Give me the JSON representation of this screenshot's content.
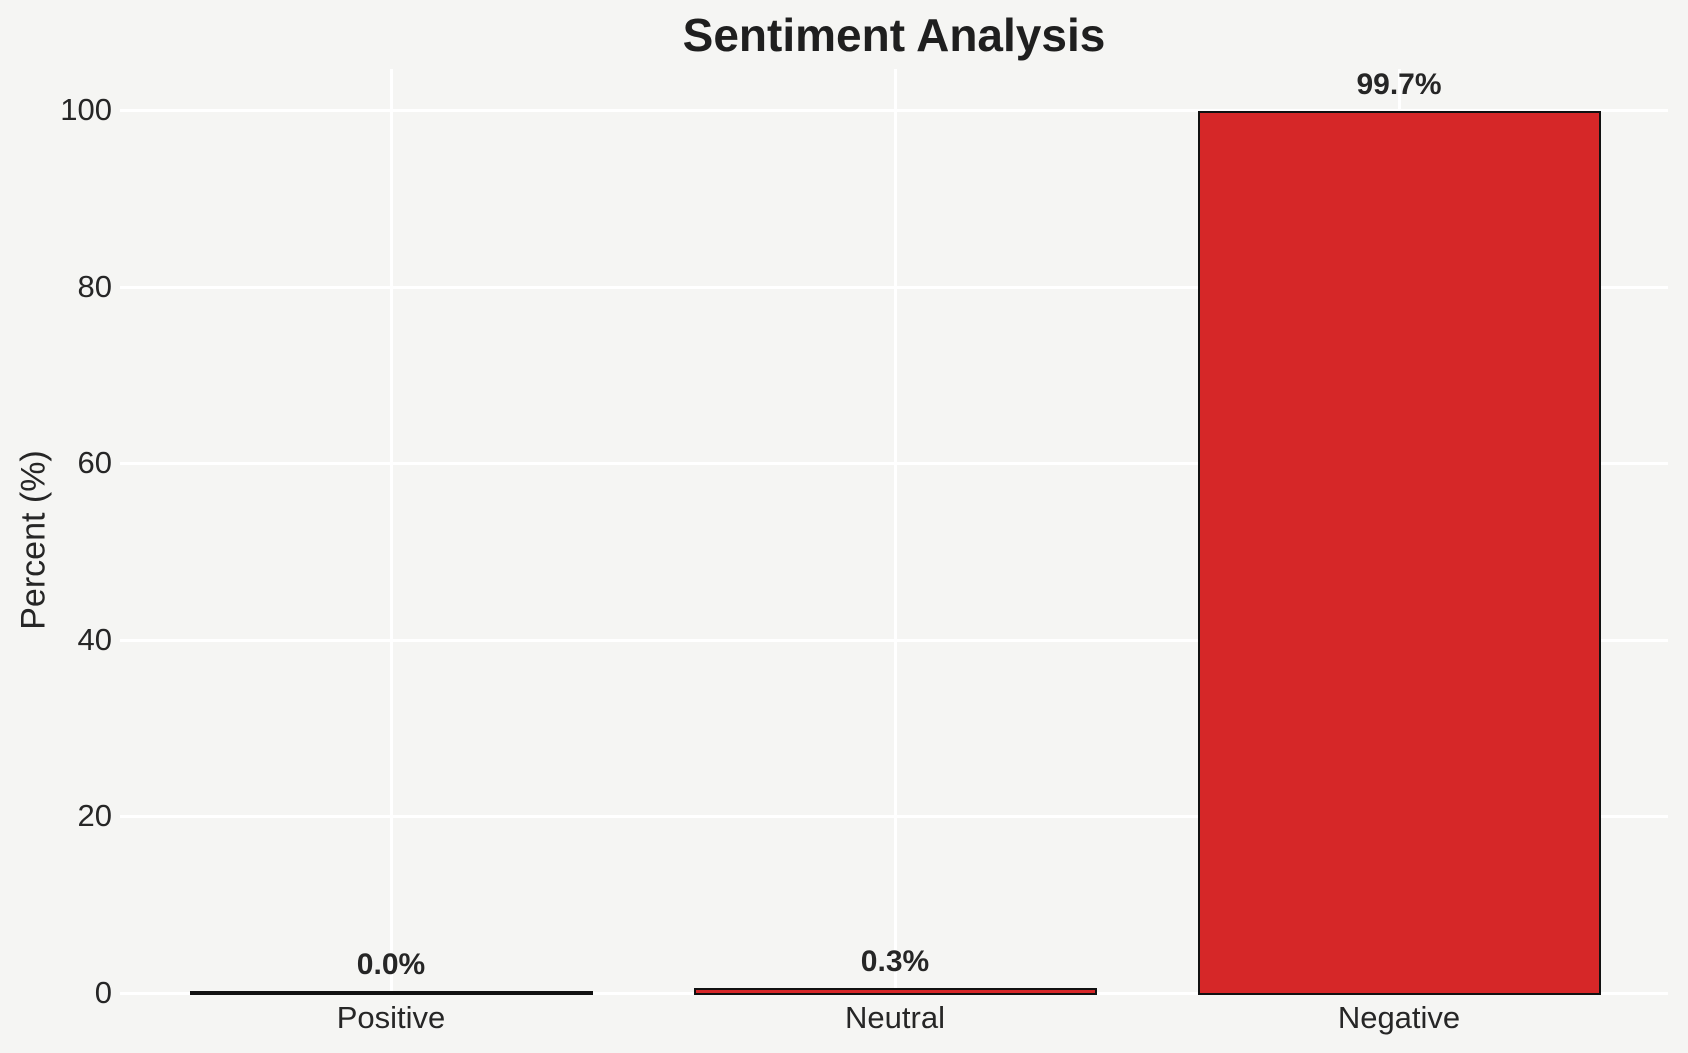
{
  "chart_data": {
    "type": "bar",
    "title": "Sentiment Analysis",
    "xlabel": "",
    "ylabel": "Percent (%)",
    "categories": [
      "Positive",
      "Neutral",
      "Negative"
    ],
    "values": [
      0.0,
      0.3,
      99.7
    ],
    "bar_labels": [
      "0.0%",
      "0.3%",
      "99.7%"
    ],
    "yticks": [
      0,
      20,
      40,
      60,
      80,
      100
    ],
    "ylim": [
      0,
      104.7
    ],
    "grid": "both horizontal and vertical white gridlines, no axis spines, no legend",
    "bar_color": "#d62728",
    "bar_edge_color": "#111111",
    "background_color": "#f5f5f3",
    "grid_color": "#ffffff",
    "text_color": "#262626",
    "title_color": "#1f1f1f"
  }
}
